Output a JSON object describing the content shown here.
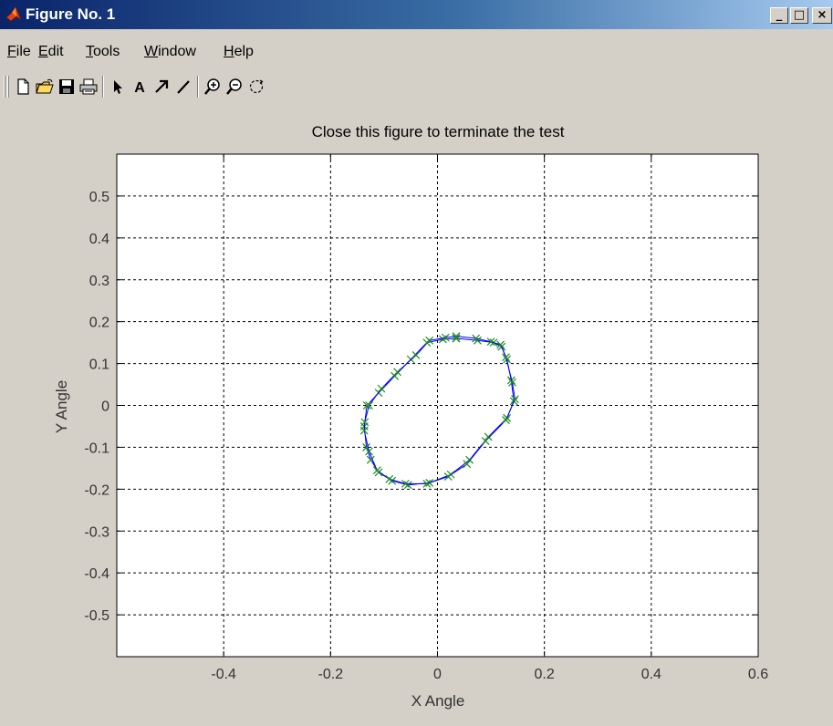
{
  "window": {
    "title": "Figure No. 1",
    "controls": {
      "minimize": "_",
      "maximize": "□",
      "close": "×"
    }
  },
  "menu": {
    "items": [
      {
        "mnemonic": "F",
        "rest": "ile"
      },
      {
        "mnemonic": "E",
        "rest": "dit"
      },
      {
        "mnemonic": "T",
        "rest": "ools"
      },
      {
        "mnemonic": "W",
        "rest": "indow"
      },
      {
        "mnemonic": "H",
        "rest": "elp"
      }
    ]
  },
  "toolbar": {
    "icons": [
      "new-file-icon",
      "open-folder-icon",
      "save-icon",
      "print-icon",
      "arrow-pointer-icon",
      "text-insert-icon",
      "arrow-draw-icon",
      "line-draw-icon",
      "zoom-in-icon",
      "zoom-out-icon",
      "rotate-icon"
    ],
    "text_tool": "A"
  },
  "colors": {
    "line": "#0000ff",
    "markers": "#228b22",
    "background": "#d4d0c8",
    "axes_bg": "#ffffff"
  },
  "chart_data": {
    "type": "line",
    "title": "Close this figure to terminate the test",
    "xlabel": "X Angle",
    "ylabel": "Y Angle",
    "xlim": [
      -0.6,
      0.6
    ],
    "ylim": [
      -0.6,
      0.6
    ],
    "xticks": [
      -0.4,
      -0.2,
      0,
      0.2,
      0.4,
      0.6
    ],
    "xtick_labels": [
      "-0.4",
      "-0.2",
      "0",
      "0.2",
      "0.4",
      "0.6"
    ],
    "yticks": [
      0.5,
      0.4,
      0.3,
      0.2,
      0.1,
      0,
      -0.1,
      -0.2,
      -0.3,
      -0.4,
      -0.5
    ],
    "ytick_labels": [
      "0.5",
      "0.4",
      "0.3",
      "0.2",
      "0.1",
      "0",
      "-0.1",
      "-0.2",
      "-0.3",
      "-0.4",
      "-0.5"
    ],
    "grid": true,
    "grid_style": "dotted",
    "series": [
      {
        "marker": "x",
        "points": [
          [
            0.035,
            0.16
          ],
          [
            0.075,
            0.155
          ],
          [
            0.105,
            0.15
          ],
          [
            0.12,
            0.14
          ],
          [
            0.13,
            0.11
          ],
          [
            0.138,
            0.06
          ],
          [
            0.143,
            0.01
          ],
          [
            0.13,
            -0.03
          ],
          [
            0.095,
            -0.075
          ],
          [
            0.06,
            -0.13
          ],
          [
            0.025,
            -0.165
          ],
          [
            -0.015,
            -0.185
          ],
          [
            -0.055,
            -0.19
          ],
          [
            -0.085,
            -0.18
          ],
          [
            -0.11,
            -0.16
          ],
          [
            -0.125,
            -0.13
          ],
          [
            -0.133,
            -0.1
          ],
          [
            -0.137,
            -0.05
          ],
          [
            -0.132,
            0.0
          ],
          [
            -0.11,
            0.03
          ],
          [
            -0.08,
            0.07
          ],
          [
            -0.05,
            0.11
          ],
          [
            -0.02,
            0.15
          ],
          [
            0.01,
            0.158
          ],
          [
            0.035,
            0.16
          ]
        ]
      },
      {
        "marker": "x",
        "points": [
          [
            0.035,
            0.165
          ],
          [
            0.072,
            0.16
          ],
          [
            0.1,
            0.152
          ],
          [
            0.118,
            0.145
          ],
          [
            0.128,
            0.115
          ],
          [
            0.14,
            0.055
          ],
          [
            0.145,
            0.015
          ],
          [
            0.128,
            -0.035
          ],
          [
            0.09,
            -0.085
          ],
          [
            0.055,
            -0.14
          ],
          [
            0.02,
            -0.17
          ],
          [
            -0.02,
            -0.187
          ],
          [
            -0.06,
            -0.187
          ],
          [
            -0.09,
            -0.176
          ],
          [
            -0.113,
            -0.155
          ],
          [
            -0.128,
            -0.11
          ],
          [
            -0.137,
            -0.06
          ],
          [
            -0.136,
            -0.04
          ],
          [
            -0.128,
            0.0
          ],
          [
            -0.105,
            0.04
          ],
          [
            -0.075,
            0.08
          ],
          [
            -0.04,
            0.12
          ],
          [
            -0.015,
            0.155
          ],
          [
            0.015,
            0.162
          ],
          [
            0.035,
            0.165
          ]
        ]
      }
    ]
  }
}
